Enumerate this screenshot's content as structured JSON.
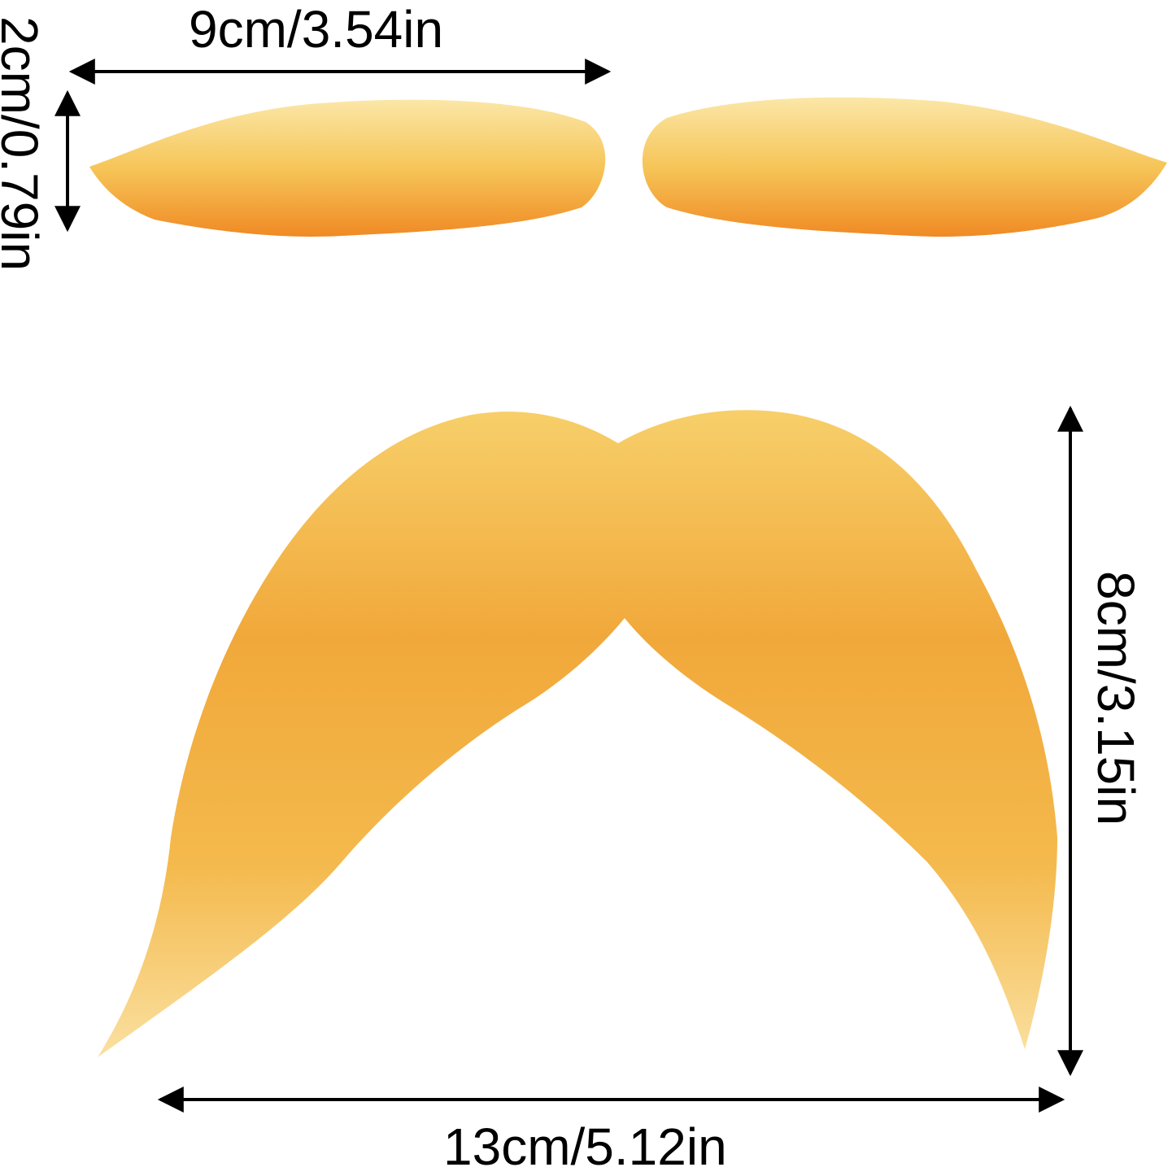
{
  "dimensions": {
    "eyebrow_width": "9cm/3.54in",
    "eyebrow_height": "2cm/0.79in",
    "mustache_height": "8cm/3.15in",
    "mustache_width": "13cm/5.12in"
  },
  "colors": {
    "hair_light": "#f8d77a",
    "hair_mid": "#f2b43c",
    "hair_dark": "#ec8a1c",
    "arrow": "#000000",
    "background": "#ffffff"
  }
}
